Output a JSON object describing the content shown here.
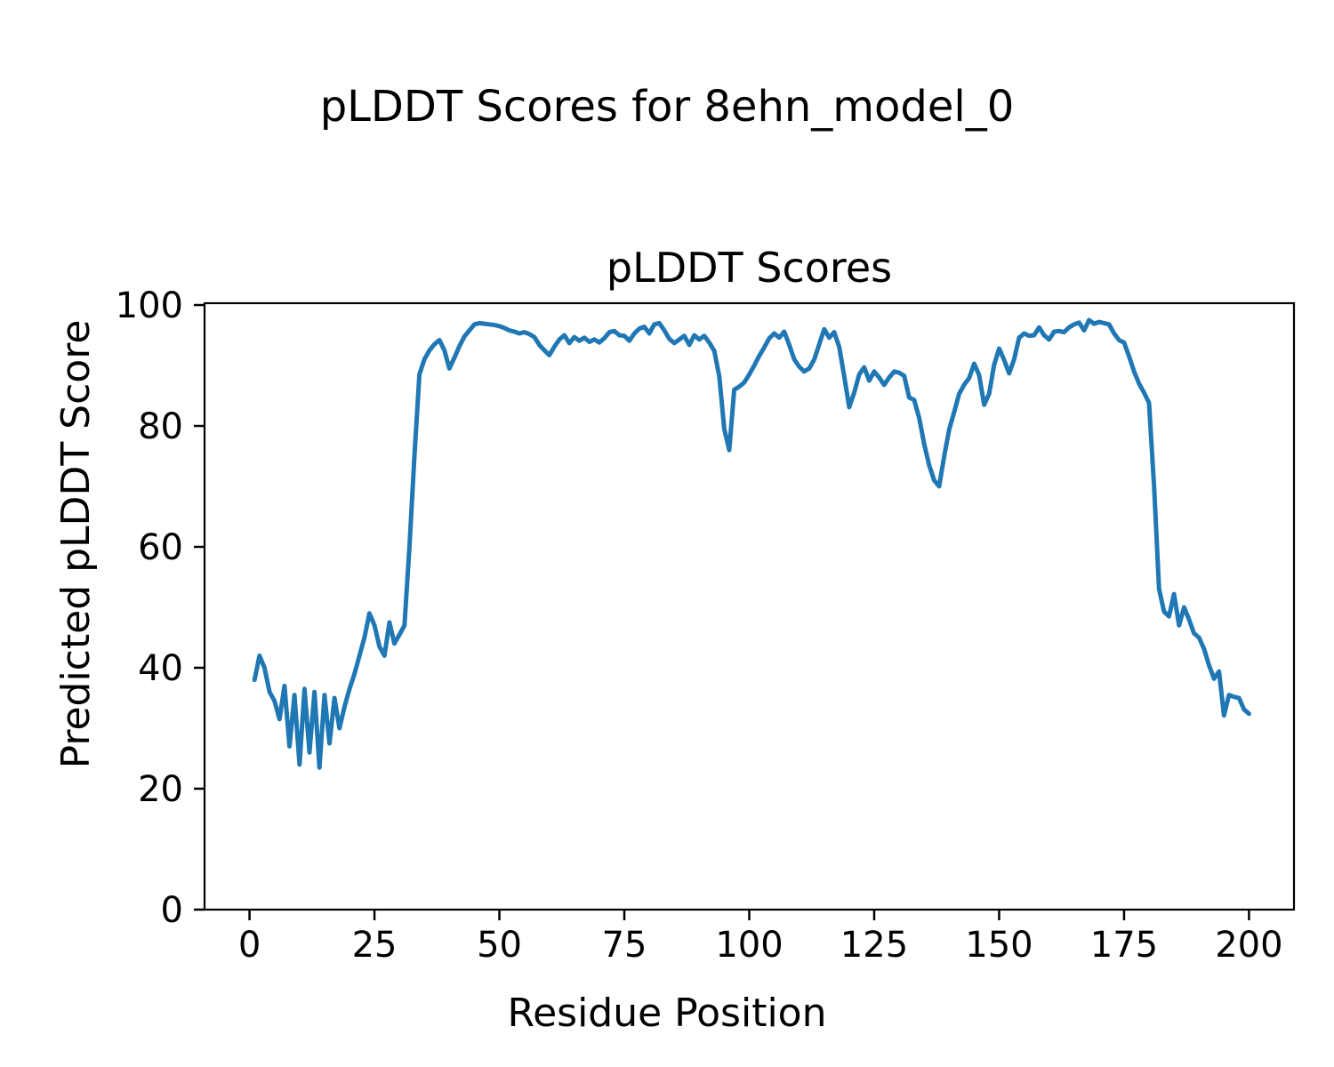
{
  "figure": {
    "suptitle": "pLDDT Scores for 8ehn_model_0",
    "background_color": "#ffffff",
    "text_color": "#000000"
  },
  "chart_data": {
    "type": "line",
    "title": "pLDDT Scores",
    "xlabel": "Residue Position",
    "ylabel": "Predicted pLDDT Score",
    "series_name": "pLDDT score per residue",
    "line_color": "#1f77b4",
    "grid": false,
    "legend_position": "none",
    "xlim": [
      -9,
      209
    ],
    "ylim": [
      0,
      100.3
    ],
    "x_ticks": [
      0,
      25,
      50,
      75,
      100,
      125,
      150,
      175,
      200
    ],
    "y_ticks": [
      0,
      20,
      40,
      60,
      80,
      100
    ],
    "x_start": 1,
    "x_step": 1,
    "values": [
      38,
      42,
      40,
      36,
      34.5,
      31.5,
      37,
      27,
      35.5,
      24,
      36.5,
      26,
      36,
      23.5,
      35.5,
      27.5,
      35,
      30,
      33.5,
      36.5,
      39,
      42,
      45,
      49,
      47,
      43.5,
      42,
      47.5,
      44,
      45.5,
      47,
      60,
      75,
      88.5,
      91,
      92.5,
      93.5,
      94.2,
      92.5,
      89.5,
      91.3,
      93.2,
      94.8,
      95.8,
      96.8,
      97,
      96.9,
      96.8,
      96.7,
      96.5,
      96.2,
      95.8,
      95.6,
      95.3,
      95.5,
      95.2,
      94.7,
      93.4,
      92.5,
      91.7,
      93.1,
      94.3,
      95,
      93.7,
      94.7,
      94.1,
      94.6,
      93.9,
      94.3,
      93.8,
      94.5,
      95.5,
      95.7,
      95,
      94.9,
      94.1,
      95.3,
      96.1,
      96.4,
      95.3,
      96.8,
      97,
      95.8,
      94.4,
      93.7,
      94.3,
      94.9,
      93.4,
      95,
      94.3,
      94.9,
      93.8,
      92.4,
      88.2,
      79.5,
      76,
      86,
      86.5,
      87.2,
      88.5,
      90,
      91.6,
      93,
      94.5,
      95.3,
      94.6,
      95.6,
      93.4,
      91,
      89.8,
      89,
      89.5,
      91,
      93.5,
      96,
      94.6,
      95.5,
      93.1,
      88.2,
      83.1,
      85.5,
      88.5,
      89.7,
      87.5,
      89,
      88,
      86.8,
      88,
      89,
      88.8,
      88.3,
      84.7,
      84.3,
      81.3,
      77,
      73.5,
      71,
      70,
      75,
      79.4,
      82.3,
      85.3,
      86.8,
      87.9,
      90.3,
      88.4,
      83.5,
      85.3,
      90.1,
      92.8,
      90.9,
      88.7,
      91,
      94.6,
      95.3,
      94.9,
      95,
      96.3,
      95,
      94.3,
      95.6,
      95.7,
      95.5,
      96.3,
      96.8,
      97.1,
      95.8,
      97.5,
      96.9,
      97.2,
      97,
      96.8,
      95.3,
      94.2,
      93.8,
      91.5,
      89,
      87,
      85.5,
      83.8,
      70,
      53,
      49.3,
      48.5,
      52.2,
      47,
      50,
      48,
      45.7,
      45,
      43.1,
      40.4,
      38.2,
      39.4,
      32.1,
      35.5,
      35.2,
      35,
      33.1,
      32.4
    ]
  }
}
